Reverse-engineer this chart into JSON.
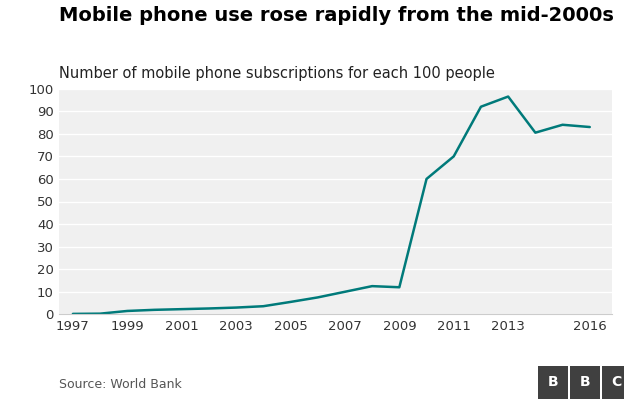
{
  "title": "Mobile phone use rose rapidly from the mid-2000s",
  "subtitle": "Number of mobile phone subscriptions for each 100 people",
  "source": "Source: World Bank",
  "bbc_label": "BBC",
  "years": [
    1997,
    1998,
    1999,
    2000,
    2001,
    2002,
    2003,
    2004,
    2005,
    2006,
    2007,
    2008,
    2009,
    2010,
    2011,
    2012,
    2013,
    2014,
    2015,
    2016
  ],
  "values": [
    0.2,
    0.3,
    1.5,
    2.0,
    2.3,
    2.6,
    3.0,
    3.6,
    5.5,
    7.5,
    10.0,
    12.5,
    12.0,
    60.0,
    70.0,
    92.0,
    96.5,
    80.5,
    84.0,
    83.0
  ],
  "line_color": "#007a7a",
  "bg_color": "#ffffff",
  "plot_bg_color": "#f0f0f0",
  "grid_color": "#ffffff",
  "title_fontsize": 14,
  "subtitle_fontsize": 10.5,
  "tick_label_fontsize": 9.5,
  "source_fontsize": 9,
  "ylim": [
    0,
    100
  ],
  "yticks": [
    0,
    10,
    20,
    30,
    40,
    50,
    60,
    70,
    80,
    90,
    100
  ],
  "xticks": [
    1997,
    1999,
    2001,
    2003,
    2005,
    2007,
    2009,
    2011,
    2013,
    2016
  ],
  "line_width": 1.8,
  "bbc_box_color": "#404040"
}
